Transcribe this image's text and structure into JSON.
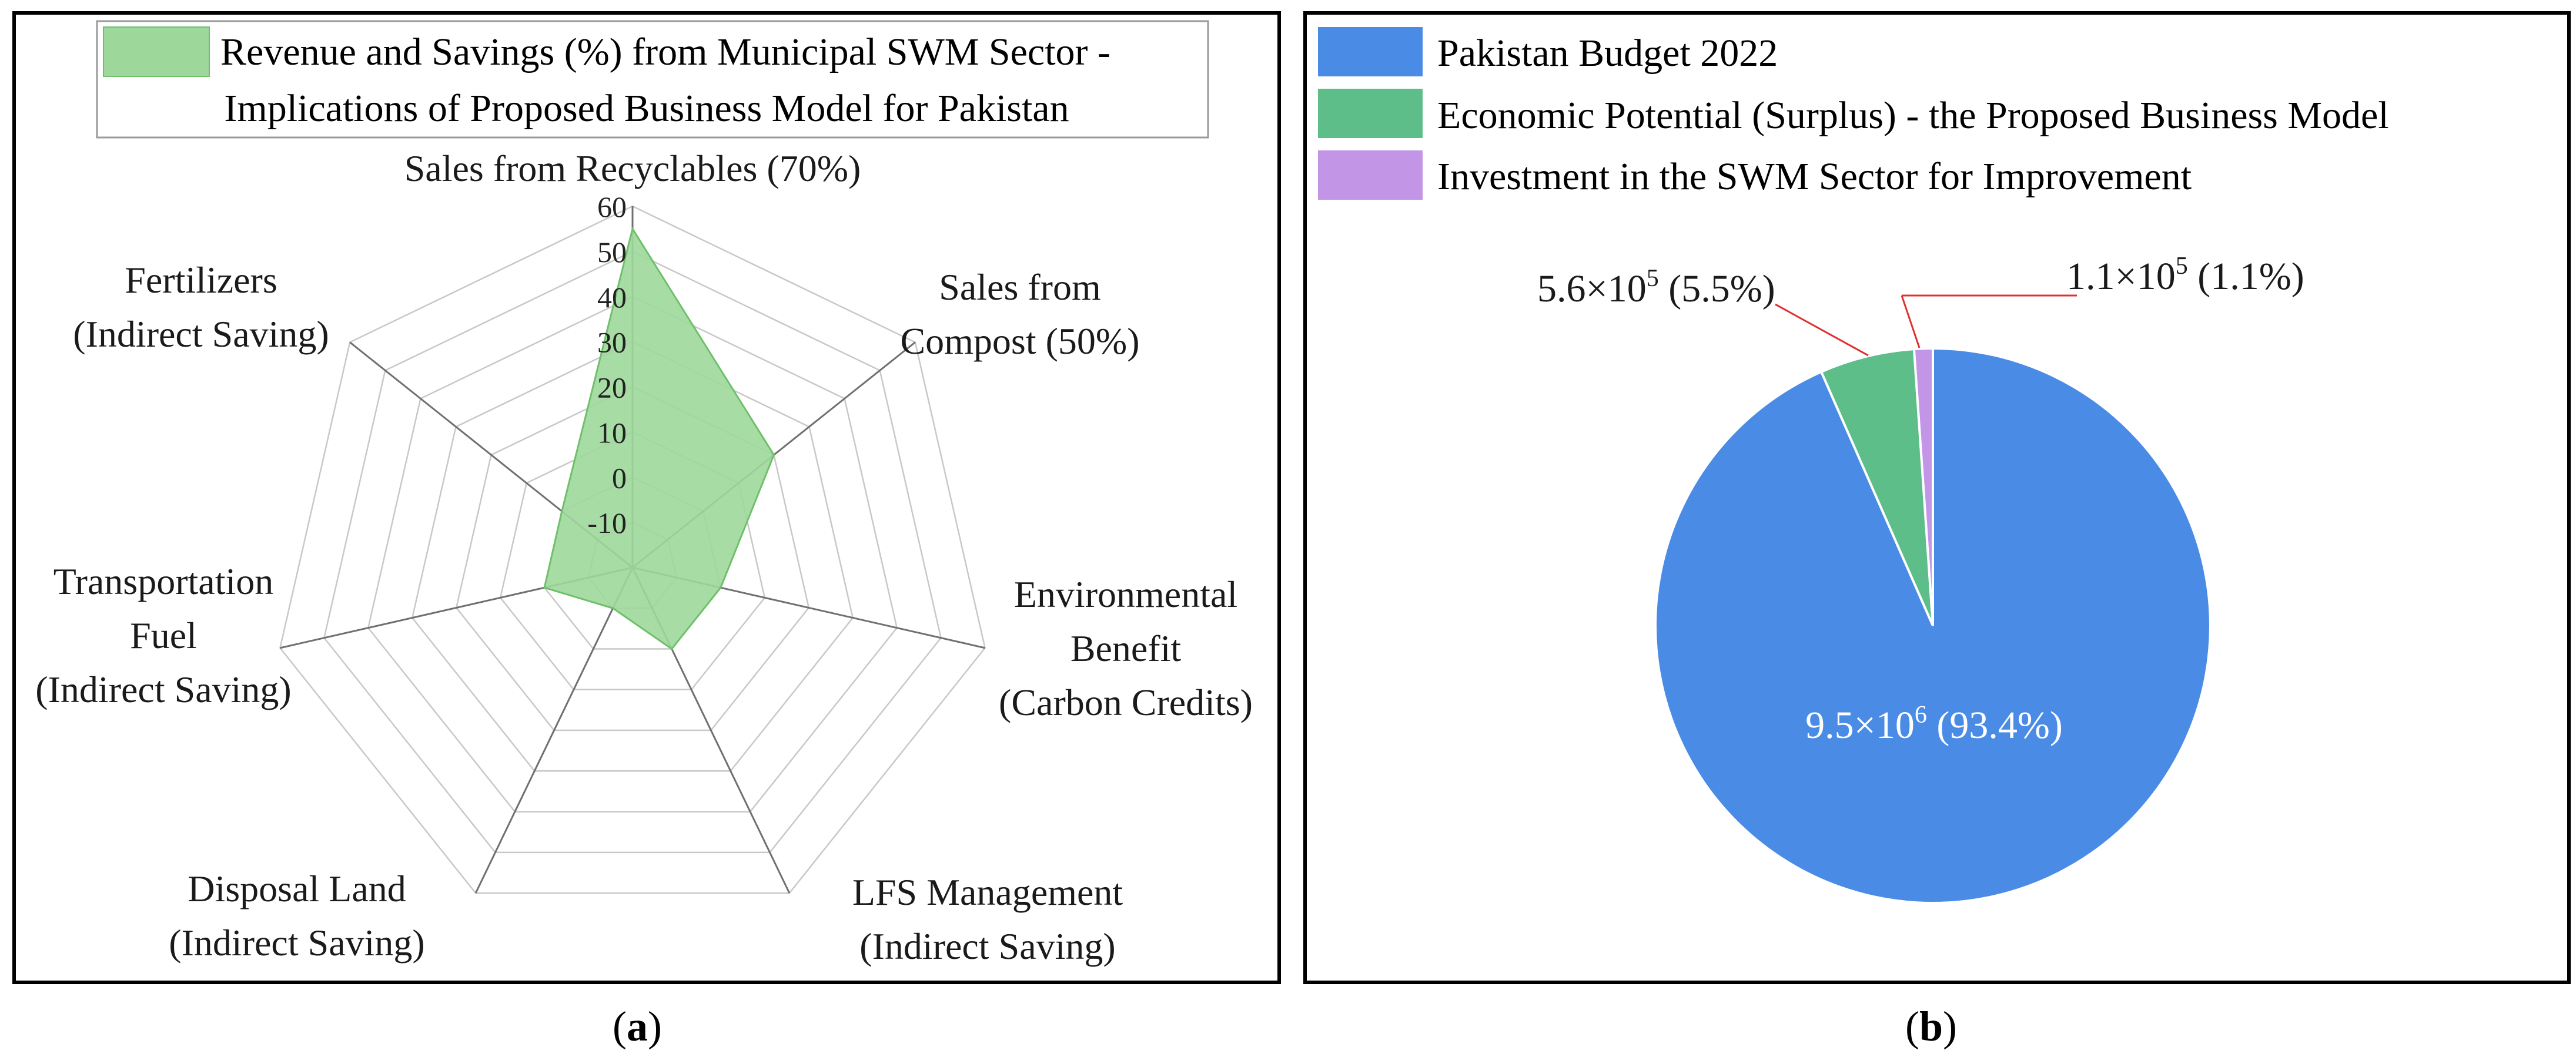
{
  "figure": {
    "panel_a_caption": "a",
    "panel_b_caption": "b"
  },
  "chart_data": [
    {
      "type": "radar",
      "legend": [
        "Revenue and Savings (%) from Municipal SWM Sector -",
        "Implications of Proposed Business Model for Pakistan"
      ],
      "axes": [
        "Sales from Recyclables (70%)",
        "Sales from Compost (50%)",
        "Environmental Benefit (Carbon Credits)",
        "LFS Management (Indirect Saving)",
        "Disposal Land (Indirect Saving)",
        "Transportation Fuel (Indirect Saving)",
        "Fertilizers (Indirect Saving)"
      ],
      "axis_label_lines": [
        [
          "Sales from Recyclables (70%)"
        ],
        [
          "Sales from",
          "Compost (50%)"
        ],
        [
          "Environmental",
          "Benefit",
          "(Carbon Credits)"
        ],
        [
          "LFS Management",
          "(Indirect Saving)"
        ],
        [
          "Disposal Land",
          "(Indirect Saving)"
        ],
        [
          "Transportation",
          "Fuel",
          "(Indirect Saving)"
        ],
        [
          "Fertilizers",
          "(Indirect Saving)"
        ]
      ],
      "values": [
        55,
        20,
        0,
        0,
        -10,
        0,
        0
      ],
      "rlim": [
        -20,
        60
      ],
      "ticks": [
        -10,
        0,
        10,
        20,
        30,
        40,
        50,
        60
      ],
      "tick_labels": [
        "-10",
        "0",
        "10",
        "20",
        "30",
        "40",
        "50",
        "60"
      ],
      "fill_color": "#9dd89a",
      "edge_color": "#6fbf6b",
      "grid_color": "#c8c8c8",
      "spoke_color": "#707070"
    },
    {
      "type": "pie",
      "legend": [
        "Pakistan Budget 2022",
        "Economic Potential (Surplus) - the Proposed Business Model",
        "Investment in the SWM Sector for Improvement"
      ],
      "values": [
        9500000,
        560000,
        110000
      ],
      "percents": [
        93.4,
        5.5,
        1.1
      ],
      "slice_labels": [
        {
          "mantissa": "9.5×10",
          "exp": "6",
          "pct": " (93.4%)"
        },
        {
          "mantissa": "5.6×10",
          "exp": "5",
          "pct": " (5.5%)"
        },
        {
          "mantissa": "1.1×10",
          "exp": "5",
          "pct": " (1.1%)"
        }
      ],
      "colors": [
        "#4a8be6",
        "#5dbe8a",
        "#c395e6"
      ],
      "leader_color": "#e03030"
    }
  ]
}
